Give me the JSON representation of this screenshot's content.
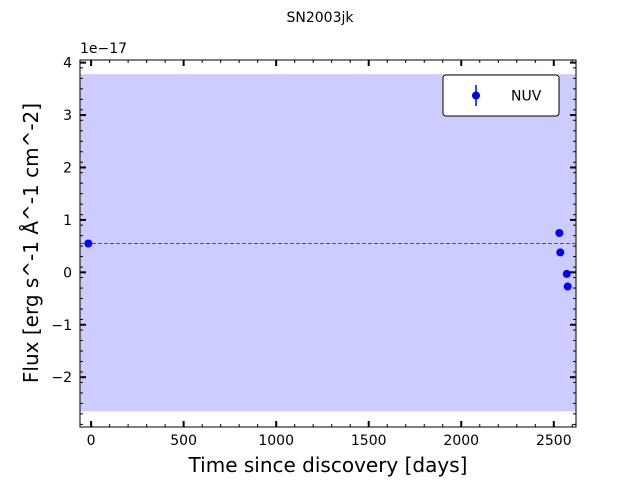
{
  "chart_data": {
    "type": "scatter",
    "title": "SN2003jk",
    "xlabel": "Time since discovery [days]",
    "ylabel": "Flux [erg s^-1 Å^-1 cm^-2]",
    "y_offset_label": "1e−17",
    "xlim": [
      -60,
      2620
    ],
    "ylim": [
      -2.95,
      4.05
    ],
    "y_scale_multiplier": 1e-17,
    "x_ticks": [
      0,
      500,
      1000,
      1500,
      2000,
      2500
    ],
    "x_tick_labels": [
      "0",
      "500",
      "1000",
      "1500",
      "2000",
      "2500"
    ],
    "y_ticks": [
      -2,
      -1,
      0,
      1,
      2,
      3,
      4
    ],
    "y_tick_labels": [
      "−2",
      "−1",
      "0",
      "1",
      "2",
      "3",
      "4"
    ],
    "legend_position": "top-right",
    "series": [
      {
        "name": "NUV",
        "color": "#0000ff",
        "points": [
          {
            "x": -15,
            "y": 0.55
          },
          {
            "x": 2530,
            "y": 0.75
          },
          {
            "x": 2535,
            "y": 0.38
          },
          {
            "x": 2570,
            "y": -0.03
          },
          {
            "x": 2575,
            "y": -0.27
          }
        ]
      }
    ],
    "reference_line": {
      "y": 0.55,
      "style": "dashed",
      "color": "#4444ff"
    },
    "band": {
      "y_low": -2.65,
      "y_high": 3.78,
      "color": "#ccccff"
    }
  }
}
